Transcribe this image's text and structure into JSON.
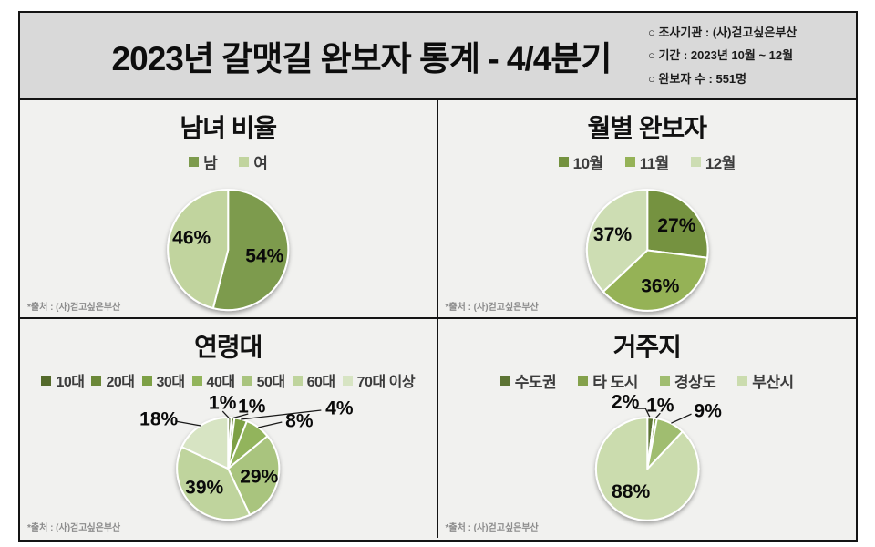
{
  "header": {
    "title": "2023년 갈맷길 완보자 통계 - 4/4분기",
    "info": [
      "○ 조사기관 : (사)걷고싶은부산",
      "○ 기간 : 2023년 10월 ~ 12월",
      "○ 완보자 수 : 551명"
    ]
  },
  "source_note": "*출처 : (사)걷고싶은부산",
  "chart_data": [
    {
      "type": "pie",
      "title": "남녀 비율",
      "labels": [
        "남",
        "여"
      ],
      "values": [
        54,
        46
      ],
      "value_labels": [
        "54%",
        "46%"
      ],
      "unit": "%",
      "colors": [
        "#7d9b4d",
        "#c1d49e"
      ],
      "legend_position": "top",
      "start_angle_deg": 0,
      "direction": "clockwise"
    },
    {
      "type": "pie",
      "title": "월별 완보자",
      "labels": [
        "10월",
        "11월",
        "12월"
      ],
      "values": [
        27,
        36,
        37
      ],
      "value_labels": [
        "27%",
        "36%",
        "37%"
      ],
      "unit": "%",
      "colors": [
        "#74923f",
        "#95b257",
        "#cdddb3"
      ],
      "legend_position": "top",
      "start_angle_deg": 0,
      "direction": "clockwise"
    },
    {
      "type": "pie",
      "title": "연령대",
      "labels": [
        "10대",
        "20대",
        "30대",
        "40대",
        "50대",
        "60대",
        "70대 이상"
      ],
      "values": [
        1,
        1,
        4,
        8,
        29,
        39,
        18
      ],
      "value_labels": [
        "1%",
        "1%",
        "4%",
        "8%",
        "29%",
        "39%",
        "18%"
      ],
      "unit": "%",
      "colors": [
        "#546a2b",
        "#6b8838",
        "#7da045",
        "#92b45b",
        "#a9c47e",
        "#bfd49d",
        "#d7e4c3"
      ],
      "legend_position": "top",
      "start_angle_deg": 0,
      "direction": "clockwise"
    },
    {
      "type": "pie",
      "title": "거주지",
      "labels": [
        "수도권",
        "타 도시",
        "경상도",
        "부산시"
      ],
      "values": [
        2,
        1,
        9,
        88
      ],
      "value_labels": [
        "2%",
        "1%",
        "9%",
        "88%"
      ],
      "unit": "%",
      "colors": [
        "#5d7434",
        "#84a14b",
        "#a0bd70",
        "#cbdcae"
      ],
      "legend_position": "top",
      "start_angle_deg": 0,
      "direction": "clockwise"
    }
  ]
}
